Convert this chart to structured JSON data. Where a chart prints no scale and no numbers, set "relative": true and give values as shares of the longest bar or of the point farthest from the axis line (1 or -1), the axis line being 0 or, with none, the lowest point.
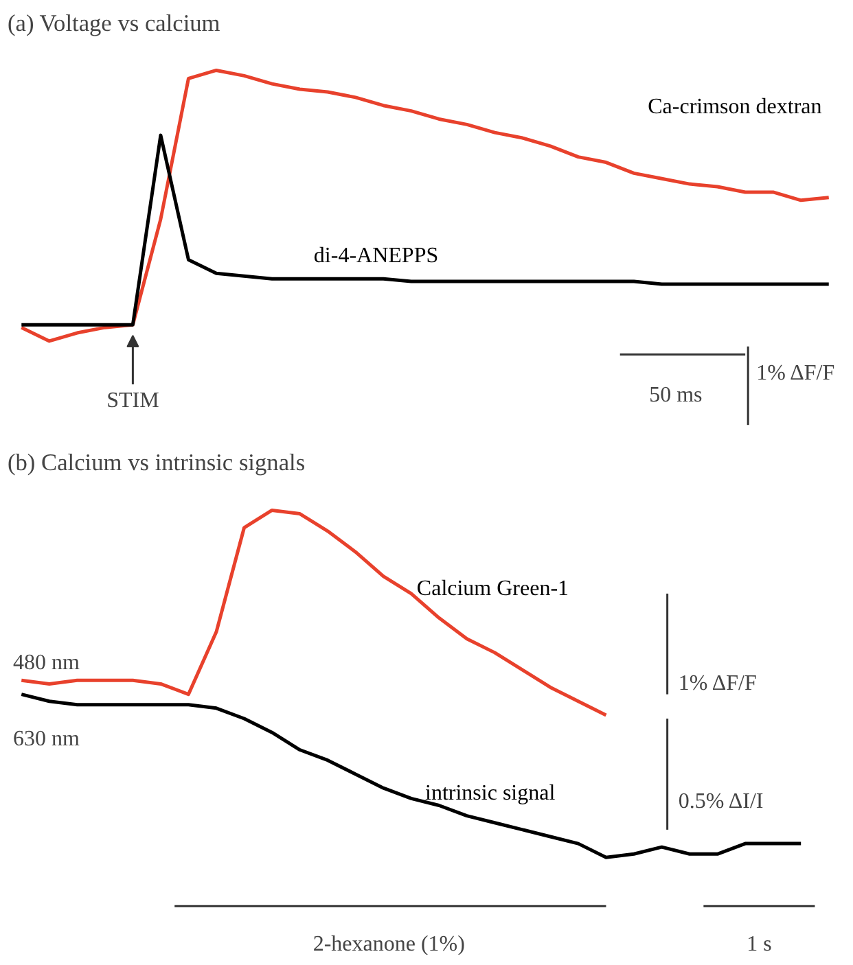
{
  "chart_data": [
    {
      "type": "line",
      "title": "(a) Voltage vs calcium",
      "relative": true,
      "categories": [
        null,
        null,
        null,
        null,
        null,
        null,
        null,
        null,
        null,
        null,
        null,
        null,
        null,
        null,
        null,
        null,
        null,
        null,
        null,
        null,
        null,
        null,
        null,
        null,
        null,
        null,
        null,
        null,
        null,
        null
      ],
      "series": [
        {
          "name": "Ca-crimson dextran",
          "color": "#e8412c",
          "values": [
            0.05,
            0.0,
            0.03,
            0.05,
            0.06,
            0.45,
            0.97,
            1.0,
            0.98,
            0.95,
            0.93,
            0.92,
            0.9,
            0.87,
            0.85,
            0.82,
            0.8,
            0.77,
            0.75,
            0.72,
            0.68,
            0.66,
            0.62,
            0.6,
            0.58,
            0.57,
            0.55,
            0.55,
            0.52,
            0.53
          ]
        },
        {
          "name": "di-4-ANEPPS",
          "color": "#000000",
          "values": [
            0.06,
            0.06,
            0.06,
            0.06,
            0.06,
            0.76,
            0.3,
            0.25,
            0.24,
            0.23,
            0.23,
            0.23,
            0.23,
            0.23,
            0.22,
            0.22,
            0.22,
            0.22,
            0.22,
            0.22,
            0.22,
            0.22,
            0.22,
            0.21,
            0.21,
            0.21,
            0.21,
            0.21,
            0.21,
            0.21
          ]
        }
      ],
      "annotations": [
        "STIM",
        "50 ms",
        "1% ΔF/F"
      ]
    },
    {
      "type": "line",
      "title": "(b) Calcium vs  intrinsic signals",
      "relative": true,
      "categories": [
        null,
        null,
        null,
        null,
        null,
        null,
        null,
        null,
        null,
        null,
        null,
        null,
        null,
        null,
        null,
        null,
        null,
        null,
        null,
        null,
        null,
        null,
        null,
        null,
        null,
        null,
        null,
        null,
        null
      ],
      "series": [
        {
          "name": "Calcium Green-1",
          "color": "#e8412c",
          "values": [
            0.51,
            0.5,
            0.51,
            0.51,
            0.51,
            0.5,
            0.47,
            0.65,
            0.95,
            1.0,
            0.99,
            0.94,
            0.88,
            0.81,
            0.76,
            0.69,
            0.63,
            0.59,
            0.54,
            0.49,
            0.45,
            0.41,
            null,
            null,
            null,
            null,
            null,
            null,
            null
          ]
        },
        {
          "name": "intrinsic signal",
          "color": "#000000",
          "values": [
            0.47,
            0.45,
            0.44,
            0.44,
            0.44,
            0.44,
            0.44,
            0.43,
            0.4,
            0.36,
            0.31,
            0.28,
            0.24,
            0.2,
            0.17,
            0.15,
            0.12,
            0.1,
            0.08,
            0.06,
            0.04,
            0.0,
            0.01,
            0.03,
            0.01,
            0.01,
            0.04,
            0.04,
            0.04
          ]
        }
      ],
      "annotations": [
        "480 nm",
        "630 nm",
        "1% ΔF/F",
        "0.5% ΔI/I",
        "2-hexanone (1%)",
        "1 s"
      ]
    }
  ]
}
